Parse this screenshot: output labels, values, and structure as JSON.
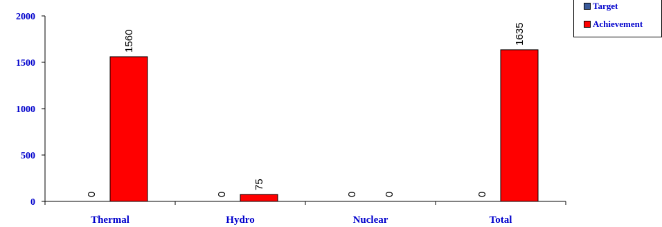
{
  "chart_data": {
    "type": "bar",
    "categories": [
      "Thermal",
      "Hydro",
      "Nuclear",
      "Total"
    ],
    "series": [
      {
        "name": "Target",
        "color": "#3a5a9a",
        "values": [
          0,
          0,
          0,
          0
        ]
      },
      {
        "name": "Achievement",
        "color": "#ff0000",
        "values": [
          1560,
          75,
          0,
          1635
        ]
      }
    ],
    "ylim": [
      0,
      2000
    ],
    "yticks": [
      0,
      500,
      1000,
      1500,
      2000
    ],
    "ytick_labels": [
      "0",
      "500",
      "1000",
      "1500",
      "2000"
    ],
    "data_labels": [
      [
        "0",
        "0",
        "0",
        "0"
      ],
      [
        "1560",
        "75",
        "0",
        "1635"
      ]
    ],
    "title": "",
    "xlabel": "",
    "ylabel": "",
    "legend_position": "top-right",
    "grid": false
  }
}
